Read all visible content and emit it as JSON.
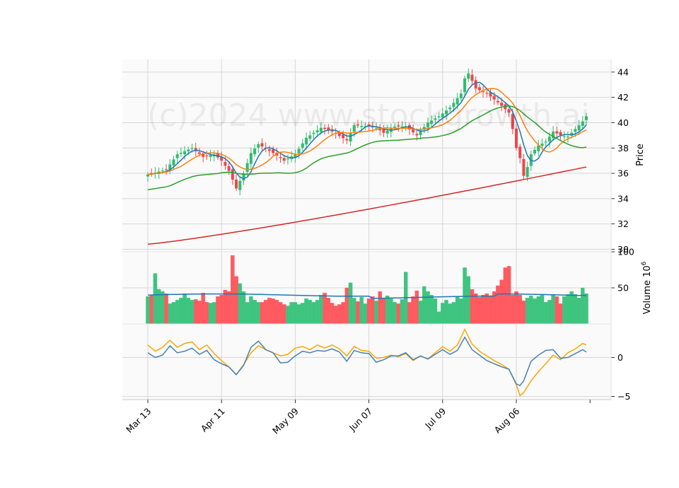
{
  "chart_data": {
    "type": "candlestick",
    "watermark": "(c)2024 www.stockgrowth.ai",
    "x_tick_labels": [
      "Mar 13",
      "Apr 11",
      "May 09",
      "Jun 07",
      "Jul 09",
      "Aug 06"
    ],
    "x_tick_index": [
      0,
      20,
      40,
      60,
      80,
      100
    ],
    "n_bars": 120,
    "colors": {
      "up": "#2ebd6e",
      "down": "#f0454a",
      "up_vol": "#3fc47f",
      "down_vol": "#ff5a60",
      "ma1": "#1f77b4",
      "ma2": "#ff7f0e",
      "ma3": "#2ca02c",
      "ma4": "#d62728",
      "osc1": "#4682b4",
      "osc2": "#ffa500"
    },
    "price_panel": {
      "ylabel": "Price",
      "ylim": [
        29.8,
        45
      ],
      "ticks": [
        30,
        32,
        34,
        36,
        38,
        40,
        42,
        44
      ],
      "close_anchors": [
        [
          0,
          35.9
        ],
        [
          5,
          36.3
        ],
        [
          8,
          37.5
        ],
        [
          12,
          38.0
        ],
        [
          15,
          37.3
        ],
        [
          18,
          37.5
        ],
        [
          20,
          37.0
        ],
        [
          22,
          36.2
        ],
        [
          24,
          34.8
        ],
        [
          26,
          36.0
        ],
        [
          28,
          37.6
        ],
        [
          30,
          38.3
        ],
        [
          34,
          37.6
        ],
        [
          37,
          37.0
        ],
        [
          40,
          37.5
        ],
        [
          43,
          38.8
        ],
        [
          47,
          39.6
        ],
        [
          50,
          39.3
        ],
        [
          54,
          38.6
        ],
        [
          56,
          39.8
        ],
        [
          60,
          39.7
        ],
        [
          62,
          39.6
        ],
        [
          64,
          39.2
        ],
        [
          67,
          39.7
        ],
        [
          70,
          39.7
        ],
        [
          73,
          39.0
        ],
        [
          76,
          40.0
        ],
        [
          79,
          40.5
        ],
        [
          82,
          41.2
        ],
        [
          85,
          42.3
        ],
        [
          86,
          43.5
        ],
        [
          87,
          43.9
        ],
        [
          89,
          42.7
        ],
        [
          92,
          42.3
        ],
        [
          95,
          41.6
        ],
        [
          98,
          40.8
        ],
        [
          99,
          39.5
        ],
        [
          100,
          38.0
        ],
        [
          101,
          37.2
        ],
        [
          102,
          35.8
        ],
        [
          103,
          36.5
        ],
        [
          104,
          37.5
        ],
        [
          106,
          38.2
        ],
        [
          108,
          38.5
        ],
        [
          110,
          39.3
        ],
        [
          112,
          39.0
        ],
        [
          114,
          38.9
        ],
        [
          116,
          39.5
        ],
        [
          118,
          40.1
        ],
        [
          119,
          40.5
        ]
      ],
      "ma_params": [
        5,
        10,
        20,
        200
      ],
      "ma4_start": 30.4,
      "ma4_end": 36.5
    },
    "volume_panel": {
      "ylabel": "Volume  10",
      "ylabel_exp": "6",
      "ylim": [
        0,
        100
      ],
      "ticks": [
        50,
        100
      ],
      "values": [
        38,
        40,
        70,
        48,
        45,
        42,
        28,
        30,
        33,
        36,
        42,
        36,
        33,
        34,
        32,
        43,
        30,
        29,
        30,
        38,
        40,
        47,
        45,
        95,
        66,
        56,
        45,
        30,
        38,
        33,
        30,
        30,
        33,
        36,
        35,
        33,
        30,
        27,
        25,
        30,
        30,
        27,
        29,
        35,
        33,
        30,
        33,
        40,
        43,
        36,
        29,
        25,
        27,
        30,
        50,
        57,
        36,
        31,
        37,
        28,
        35,
        38,
        32,
        45,
        36,
        39,
        35,
        30,
        28,
        34,
        72,
        30,
        38,
        46,
        32,
        52,
        45,
        40,
        35,
        17,
        29,
        33,
        28,
        30,
        38,
        35,
        78,
        66,
        48,
        42,
        37,
        40,
        42,
        38,
        45,
        53,
        61,
        78,
        80,
        40,
        45,
        40,
        32,
        36,
        39,
        35,
        38,
        40,
        30,
        33,
        41,
        38,
        28,
        38,
        41,
        45,
        41,
        36,
        50,
        42
      ],
      "ma_value": 40
    },
    "osc_panel": {
      "ylim": [
        -5.4,
        4.3
      ],
      "ticks": [
        -5,
        0
      ],
      "line1_anchors": [
        [
          0,
          0.6
        ],
        [
          2,
          0
        ],
        [
          4,
          0.3
        ],
        [
          6,
          1.5
        ],
        [
          8,
          0.6
        ],
        [
          10,
          0.8
        ],
        [
          12,
          1.2
        ],
        [
          14,
          0.4
        ],
        [
          16,
          0.9
        ],
        [
          18,
          -0.3
        ],
        [
          20,
          -0.8
        ],
        [
          22,
          -1.2
        ],
        [
          24,
          -2.2
        ],
        [
          26,
          -1.0
        ],
        [
          28,
          1.3
        ],
        [
          30,
          2.1
        ],
        [
          32,
          1.0
        ],
        [
          34,
          0.6
        ],
        [
          36,
          -0.7
        ],
        [
          38,
          -0.6
        ],
        [
          40,
          0.2
        ],
        [
          42,
          0.8
        ],
        [
          44,
          0.6
        ],
        [
          46,
          0.9
        ],
        [
          48,
          0.8
        ],
        [
          50,
          1.1
        ],
        [
          52,
          0.7
        ],
        [
          54,
          -0.5
        ],
        [
          56,
          0.9
        ],
        [
          58,
          0.6
        ],
        [
          60,
          0.5
        ],
        [
          62,
          -0.6
        ],
        [
          64,
          -0.3
        ],
        [
          66,
          0.2
        ],
        [
          68,
          0.2
        ],
        [
          70,
          0.6
        ],
        [
          72,
          -0.3
        ],
        [
          74,
          0.2
        ],
        [
          76,
          -0.2
        ],
        [
          78,
          0.4
        ],
        [
          80,
          1.0
        ],
        [
          82,
          0.4
        ],
        [
          84,
          0.9
        ],
        [
          86,
          2.6
        ],
        [
          88,
          1.0
        ],
        [
          90,
          0.3
        ],
        [
          92,
          -0.4
        ],
        [
          94,
          -0.8
        ],
        [
          96,
          -1.2
        ],
        [
          98,
          -1.5
        ],
        [
          100,
          -3.4
        ],
        [
          101,
          -3.6
        ],
        [
          102,
          -3.0
        ],
        [
          104,
          -0.5
        ],
        [
          106,
          0.3
        ],
        [
          108,
          0.9
        ],
        [
          110,
          1.0
        ],
        [
          112,
          -0.1
        ],
        [
          114,
          0.0
        ],
        [
          116,
          0.5
        ],
        [
          118,
          1.0
        ],
        [
          119,
          0.7
        ]
      ],
      "line2_anchors": [
        [
          0,
          1.6
        ],
        [
          2,
          0.8
        ],
        [
          4,
          1.3
        ],
        [
          6,
          2.2
        ],
        [
          8,
          1.3
        ],
        [
          10,
          1.8
        ],
        [
          12,
          2.0
        ],
        [
          14,
          1.0
        ],
        [
          16,
          1.6
        ],
        [
          18,
          0.5
        ],
        [
          20,
          -0.4
        ],
        [
          22,
          -1.2
        ],
        [
          24,
          -2.2
        ],
        [
          26,
          -0.9
        ],
        [
          28,
          0.6
        ],
        [
          30,
          1.5
        ],
        [
          32,
          1.0
        ],
        [
          34,
          0.6
        ],
        [
          36,
          0.2
        ],
        [
          38,
          0.4
        ],
        [
          40,
          1.2
        ],
        [
          42,
          1.4
        ],
        [
          44,
          1.0
        ],
        [
          46,
          1.6
        ],
        [
          48,
          1.2
        ],
        [
          50,
          1.6
        ],
        [
          52,
          1.1
        ],
        [
          54,
          0.2
        ],
        [
          56,
          1.4
        ],
        [
          58,
          0.9
        ],
        [
          60,
          0.8
        ],
        [
          62,
          -0.1
        ],
        [
          64,
          0.0
        ],
        [
          66,
          0.3
        ],
        [
          68,
          0.1
        ],
        [
          70,
          0.5
        ],
        [
          72,
          -0.4
        ],
        [
          74,
          0.2
        ],
        [
          76,
          -0.2
        ],
        [
          78,
          0.6
        ],
        [
          80,
          1.4
        ],
        [
          82,
          0.8
        ],
        [
          84,
          1.6
        ],
        [
          86,
          3.6
        ],
        [
          88,
          1.7
        ],
        [
          90,
          0.8
        ],
        [
          92,
          0.2
        ],
        [
          94,
          -0.4
        ],
        [
          96,
          -0.9
        ],
        [
          98,
          -1.5
        ],
        [
          100,
          -3.5
        ],
        [
          101,
          -4.9
        ],
        [
          102,
          -4.5
        ],
        [
          104,
          -3.0
        ],
        [
          106,
          -1.8
        ],
        [
          108,
          -0.8
        ],
        [
          110,
          0.3
        ],
        [
          112,
          -0.3
        ],
        [
          114,
          0.6
        ],
        [
          116,
          1.1
        ],
        [
          118,
          1.8
        ],
        [
          119,
          1.6
        ]
      ]
    }
  }
}
